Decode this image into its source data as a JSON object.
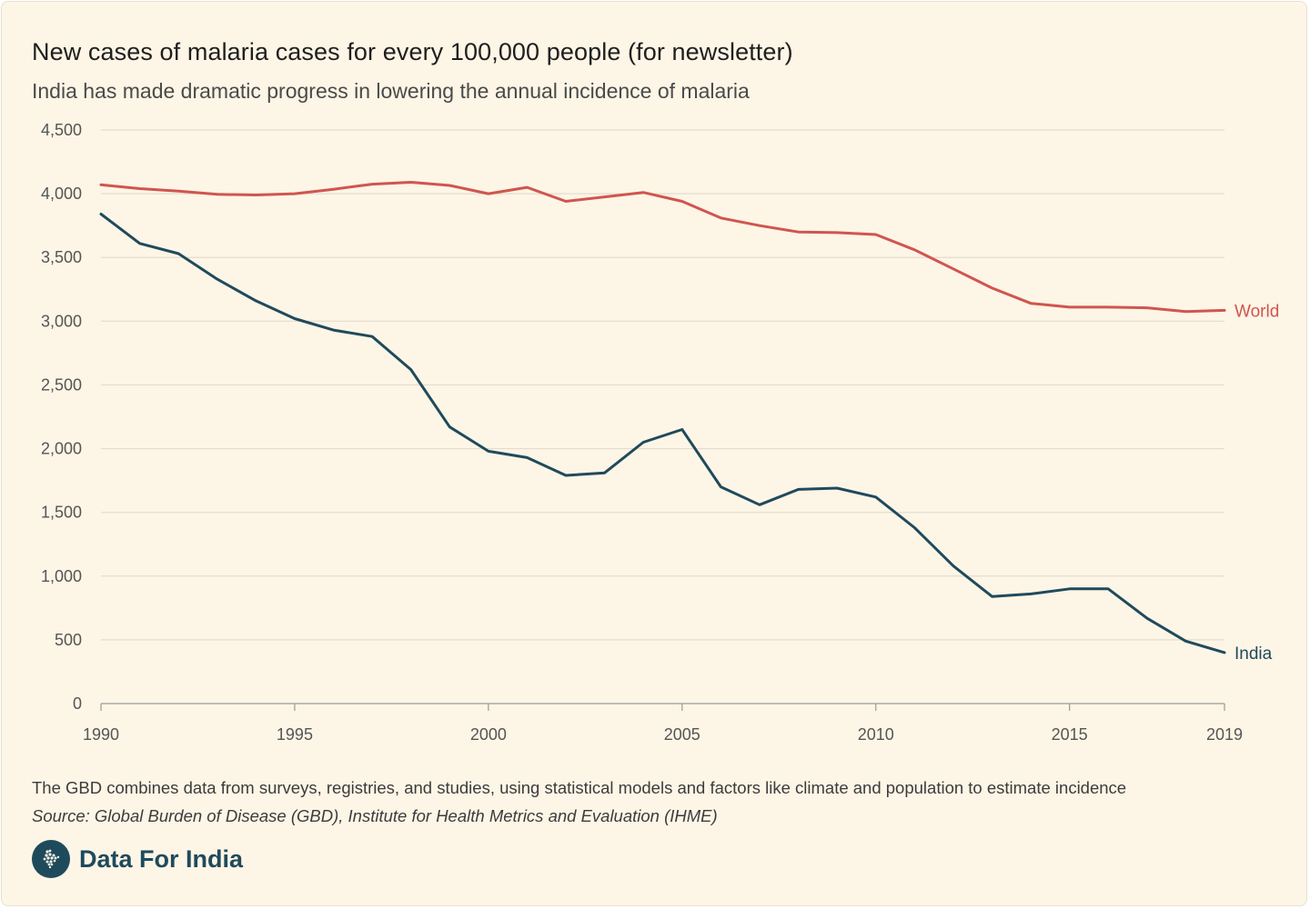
{
  "title": "New cases of malaria cases for every 100,000 people (for newsletter)",
  "subtitle": "India has made dramatic progress in lowering the annual incidence of malaria",
  "note": "The GBD combines data from surveys, registries, and studies, using statistical models and factors like climate and population to estimate incidence",
  "source": "Source: Global Burden of Disease (GBD), Institute for Health Metrics and Evaluation (IHME)",
  "brand": {
    "name": "Data For India",
    "logo_icon": "india-map-icon"
  },
  "colors": {
    "world": "#d0554f",
    "india": "#1f4a5c",
    "grid": "#e3dccf",
    "axis": "#9a9a9a"
  },
  "chart_data": {
    "type": "line",
    "title": "New cases of malaria cases for every 100,000 people (for newsletter)",
    "xlabel": "",
    "ylabel": "",
    "x": [
      1990,
      1991,
      1992,
      1993,
      1994,
      1995,
      1996,
      1997,
      1998,
      1999,
      2000,
      2001,
      2002,
      2003,
      2004,
      2005,
      2006,
      2007,
      2008,
      2009,
      2010,
      2011,
      2012,
      2013,
      2014,
      2015,
      2016,
      2017,
      2018,
      2019
    ],
    "ylim": [
      0,
      4500
    ],
    "xlim": [
      1990,
      2019
    ],
    "y_ticks": [
      0,
      500,
      1000,
      1500,
      2000,
      2500,
      3000,
      3500,
      4000,
      4500
    ],
    "y_tick_labels": [
      "0",
      "500",
      "1,000",
      "1,500",
      "2,000",
      "2,500",
      "3,000",
      "3,500",
      "4,000",
      "4,500"
    ],
    "x_ticks": [
      1990,
      1995,
      2000,
      2005,
      2010,
      2015,
      2019
    ],
    "x_tick_labels": [
      "1990",
      "1995",
      "2000",
      "2005",
      "2010",
      "2015",
      "2019"
    ],
    "grid": true,
    "series": [
      {
        "name": "World",
        "color": "#d0554f",
        "values": [
          4070,
          4040,
          4020,
          3995,
          3990,
          4000,
          4035,
          4075,
          4090,
          4065,
          4000,
          4050,
          3940,
          3975,
          4010,
          3940,
          3810,
          3750,
          3700,
          3695,
          3680,
          3560,
          3410,
          3260,
          3140,
          3110,
          3110,
          3105,
          3075,
          3085
        ]
      },
      {
        "name": "India",
        "color": "#1f4a5c",
        "values": [
          3840,
          3610,
          3530,
          3330,
          3160,
          3020,
          2930,
          2880,
          2620,
          2170,
          1980,
          1930,
          1790,
          1810,
          2050,
          2150,
          1700,
          1560,
          1680,
          1690,
          1620,
          1380,
          1080,
          840,
          860,
          900,
          900,
          670,
          490,
          400
        ]
      }
    ]
  }
}
